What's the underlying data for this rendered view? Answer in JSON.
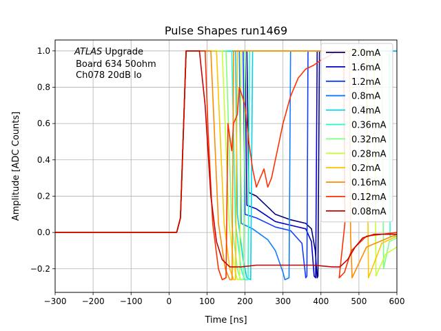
{
  "chart_data": {
    "type": "line",
    "title": "Pulse Shapes run1469",
    "xlabel": "Time [ns]",
    "ylabel": "Amplitude [ADC Counts]",
    "xlim": [
      -300,
      600
    ],
    "ylim": [
      -0.33,
      1.06
    ],
    "xticks": [
      -300,
      -200,
      -100,
      0,
      100,
      200,
      300,
      400,
      500,
      600
    ],
    "xtick_labels": [
      "−300",
      "−200",
      "−100",
      "0",
      "100",
      "200",
      "300",
      "400",
      "500",
      "600"
    ],
    "yticks": [
      -0.2,
      0.0,
      0.2,
      0.4,
      0.6,
      0.8,
      1.0
    ],
    "ytick_labels": [
      "−0.2",
      "0.0",
      "0.2",
      "0.4",
      "0.6",
      "0.8",
      "1.0"
    ],
    "grid": true,
    "legend_position": "upper right",
    "annotation": {
      "atlas": "ATLAS",
      "line1_rest": " Upgrade",
      "line2": "Board 634 50ohm",
      "line3": "Ch078 20dB lo"
    },
    "series": [
      {
        "name": "2.0mA",
        "color": "#00007f",
        "points": [
          [
            -300,
            0
          ],
          [
            20,
            0
          ],
          [
            30,
            0.08
          ],
          [
            45,
            1
          ],
          [
            205,
            1
          ],
          [
            210,
            0.22
          ],
          [
            230,
            0.2
          ],
          [
            280,
            0.1
          ],
          [
            320,
            0.07
          ],
          [
            360,
            0.05
          ],
          [
            375,
            0.02
          ],
          [
            385,
            -0.1
          ],
          [
            390,
            -0.25
          ],
          [
            392,
            -0.24
          ],
          [
            396,
            1
          ],
          [
            600,
            1
          ]
        ]
      },
      {
        "name": "1.6mA",
        "color": "#0000c8",
        "points": [
          [
            -300,
            0
          ],
          [
            20,
            0
          ],
          [
            30,
            0.08
          ],
          [
            45,
            1
          ],
          [
            200,
            1
          ],
          [
            205,
            0.15
          ],
          [
            230,
            0.13
          ],
          [
            280,
            0.06
          ],
          [
            320,
            0.04
          ],
          [
            360,
            0.02
          ],
          [
            375,
            -0.05
          ],
          [
            382,
            -0.24
          ],
          [
            386,
            -0.25
          ],
          [
            390,
            1
          ],
          [
            600,
            1
          ]
        ]
      },
      {
        "name": "1.2mA",
        "color": "#0d3cff",
        "points": [
          [
            -300,
            0
          ],
          [
            20,
            0
          ],
          [
            30,
            0.08
          ],
          [
            45,
            1
          ],
          [
            195,
            1
          ],
          [
            200,
            0.1
          ],
          [
            230,
            0.08
          ],
          [
            280,
            0.03
          ],
          [
            320,
            0.01
          ],
          [
            350,
            -0.06
          ],
          [
            360,
            -0.25
          ],
          [
            363,
            -0.24
          ],
          [
            366,
            1
          ],
          [
            600,
            1
          ]
        ]
      },
      {
        "name": "0.8mA",
        "color": "#0c7cff",
        "points": [
          [
            -300,
            0
          ],
          [
            20,
            0
          ],
          [
            30,
            0.08
          ],
          [
            45,
            1
          ],
          [
            185,
            1
          ],
          [
            190,
            0.05
          ],
          [
            220,
            0.02
          ],
          [
            260,
            -0.04
          ],
          [
            280,
            -0.1
          ],
          [
            300,
            -0.22
          ],
          [
            305,
            -0.26
          ],
          [
            316,
            -0.25
          ],
          [
            320,
            1
          ],
          [
            600,
            1
          ]
        ]
      },
      {
        "name": "0.4mA",
        "color": "#04d2e8",
        "points": [
          [
            -300,
            0
          ],
          [
            20,
            0
          ],
          [
            30,
            0.08
          ],
          [
            45,
            1
          ],
          [
            175,
            1
          ],
          [
            180,
            0.1
          ],
          [
            195,
            -0.15
          ],
          [
            205,
            -0.25
          ],
          [
            215,
            -0.26
          ],
          [
            220,
            1
          ],
          [
            600,
            1
          ]
        ]
      },
      {
        "name": "0.36mA",
        "color": "#22ffcc",
        "points": [
          [
            -300,
            0
          ],
          [
            20,
            0
          ],
          [
            30,
            0.08
          ],
          [
            45,
            1
          ],
          [
            165,
            1
          ],
          [
            175,
            0.05
          ],
          [
            190,
            -0.2
          ],
          [
            198,
            -0.26
          ],
          [
            208,
            -0.26
          ],
          [
            212,
            1
          ],
          [
            580,
            1
          ],
          [
            582,
            -0.02
          ],
          [
            600,
            -0.02
          ]
        ]
      },
      {
        "name": "0.32mA",
        "color": "#7fff7f",
        "points": [
          [
            -300,
            0
          ],
          [
            20,
            0
          ],
          [
            30,
            0.08
          ],
          [
            45,
            1
          ],
          [
            150,
            1
          ],
          [
            165,
            0.05
          ],
          [
            180,
            -0.2
          ],
          [
            188,
            -0.26
          ],
          [
            196,
            -0.26
          ],
          [
            200,
            1
          ],
          [
            560,
            1
          ],
          [
            565,
            -0.2
          ],
          [
            580,
            -0.05
          ],
          [
            600,
            -0.03
          ]
        ]
      },
      {
        "name": "0.28mA",
        "color": "#c6ff33",
        "points": [
          [
            -300,
            0
          ],
          [
            20,
            0
          ],
          [
            30,
            0.08
          ],
          [
            45,
            1
          ],
          [
            140,
            1
          ],
          [
            158,
            0.05
          ],
          [
            172,
            -0.2
          ],
          [
            180,
            -0.26
          ],
          [
            186,
            -0.26
          ],
          [
            190,
            1
          ],
          [
            540,
            1
          ],
          [
            545,
            -0.24
          ],
          [
            570,
            -0.12
          ],
          [
            600,
            -0.08
          ]
        ]
      },
      {
        "name": "0.2mA",
        "color": "#ffc400",
        "points": [
          [
            -300,
            0
          ],
          [
            20,
            0
          ],
          [
            30,
            0.08
          ],
          [
            45,
            1
          ],
          [
            125,
            1
          ],
          [
            145,
            0.05
          ],
          [
            160,
            -0.2
          ],
          [
            170,
            -0.26
          ],
          [
            175,
            -0.26
          ],
          [
            180,
            1
          ],
          [
            520,
            1
          ],
          [
            525,
            -0.25
          ],
          [
            560,
            -0.06
          ],
          [
            600,
            -0.02
          ]
        ]
      },
      {
        "name": "0.16mA",
        "color": "#ff8a00",
        "points": [
          [
            -300,
            0
          ],
          [
            20,
            0
          ],
          [
            30,
            0.08
          ],
          [
            45,
            1
          ],
          [
            110,
            1
          ],
          [
            130,
            0.05
          ],
          [
            148,
            -0.2
          ],
          [
            160,
            -0.26
          ],
          [
            166,
            -0.26
          ],
          [
            170,
            1
          ],
          [
            475,
            1
          ],
          [
            478,
            -0.02
          ],
          [
            482,
            -0.25
          ],
          [
            520,
            -0.08
          ],
          [
            600,
            -0.01
          ]
        ]
      },
      {
        "name": "0.12mA",
        "color": "#ff3000",
        "points": [
          [
            -300,
            0
          ],
          [
            20,
            0
          ],
          [
            30,
            0.08
          ],
          [
            45,
            1
          ],
          [
            95,
            1
          ],
          [
            103,
            0.55
          ],
          [
            115,
            0.05
          ],
          [
            130,
            -0.2
          ],
          [
            140,
            -0.26
          ],
          [
            150,
            -0.25
          ],
          [
            155,
            0.6
          ],
          [
            165,
            0.45
          ],
          [
            170,
            0.6
          ],
          [
            180,
            0.65
          ],
          [
            185,
            0.8
          ],
          [
            193,
            0.75
          ],
          [
            200,
            0.7
          ],
          [
            210,
            0.5
          ],
          [
            220,
            0.35
          ],
          [
            230,
            0.25
          ],
          [
            240,
            0.3
          ],
          [
            250,
            0.35
          ],
          [
            260,
            0.25
          ],
          [
            270,
            0.3
          ],
          [
            280,
            0.4
          ],
          [
            290,
            0.5
          ],
          [
            300,
            0.6
          ],
          [
            320,
            0.75
          ],
          [
            340,
            0.85
          ],
          [
            360,
            0.9
          ],
          [
            380,
            0.92
          ],
          [
            400,
            0.95
          ],
          [
            420,
            0.97
          ],
          [
            440,
            1
          ],
          [
            460,
            1
          ],
          [
            463,
            0.05
          ],
          [
            448,
            -0.25
          ],
          [
            462,
            -0.22
          ],
          [
            480,
            -0.1
          ],
          [
            520,
            -0.02
          ],
          [
            600,
            0
          ]
        ]
      },
      {
        "name": "0.08mA",
        "color": "#c80000",
        "points": [
          [
            -300,
            0
          ],
          [
            20,
            0
          ],
          [
            30,
            0.08
          ],
          [
            45,
            1
          ],
          [
            80,
            1
          ],
          [
            95,
            0.7
          ],
          [
            110,
            0.2
          ],
          [
            125,
            -0.05
          ],
          [
            140,
            -0.15
          ],
          [
            160,
            -0.19
          ],
          [
            190,
            -0.19
          ],
          [
            230,
            -0.18
          ],
          [
            300,
            -0.18
          ],
          [
            380,
            -0.18
          ],
          [
            430,
            -0.19
          ],
          [
            450,
            -0.19
          ],
          [
            470,
            -0.15
          ],
          [
            490,
            -0.08
          ],
          [
            510,
            -0.03
          ],
          [
            540,
            -0.01
          ],
          [
            600,
            -0.01
          ]
        ]
      }
    ]
  }
}
